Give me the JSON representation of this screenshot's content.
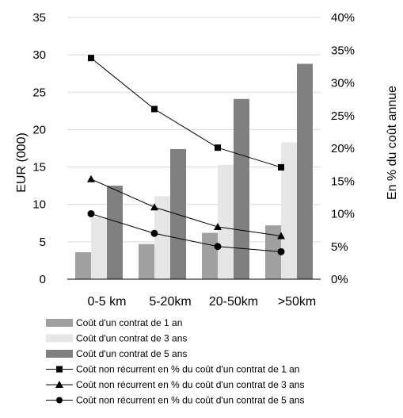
{
  "chart_data": {
    "type": "bar",
    "categories": [
      "0-5 km",
      "5-20km",
      "20-50km",
      ">50km"
    ],
    "series": [
      {
        "name": "Coût d'un contrat de 1 an",
        "kind": "bar",
        "axis": "left",
        "color": "#a0a0a0",
        "values": [
          3.6,
          4.7,
          6.2,
          7.2
        ]
      },
      {
        "name": "Coût d'un contrat de 3 ans",
        "kind": "bar",
        "axis": "left",
        "color": "#e6e6e6",
        "values": [
          8.3,
          11.1,
          15.3,
          18.3
        ]
      },
      {
        "name": "Coût d'un contrat de 5 ans",
        "kind": "bar",
        "axis": "left",
        "color": "#808080",
        "values": [
          12.5,
          17.4,
          24.1,
          28.8
        ]
      },
      {
        "name": "Coût non récurrent en % du coût d'un contrat de 1 an",
        "kind": "line",
        "marker": "square",
        "axis": "right",
        "color": "#000000",
        "values": [
          0.338,
          0.26,
          0.201,
          0.171
        ]
      },
      {
        "name": "Coût non récurrent en % du coût d'un contrat de 3 ans",
        "kind": "line",
        "marker": "triangle",
        "axis": "right",
        "color": "#000000",
        "values": [
          0.153,
          0.11,
          0.08,
          0.066
        ]
      },
      {
        "name": "Coût non récurrent en % du coût d'un contrat de 5 ans",
        "kind": "line",
        "marker": "circle",
        "axis": "right",
        "color": "#000000",
        "values": [
          0.1,
          0.07,
          0.05,
          0.042
        ]
      }
    ],
    "ylabel": "EUR (000)",
    "y2label": "En % du coût annue",
    "ylim": [
      0,
      35
    ],
    "y2lim": [
      0,
      0.4
    ],
    "yticks": [
      "0",
      "5",
      "10",
      "15",
      "20",
      "25",
      "30",
      "35"
    ],
    "y2ticks": [
      "0%",
      "5%",
      "10%",
      "15%",
      "20%",
      "25%",
      "30%",
      "35%",
      "40%"
    ],
    "grid": true,
    "legend_position": "bottom"
  }
}
